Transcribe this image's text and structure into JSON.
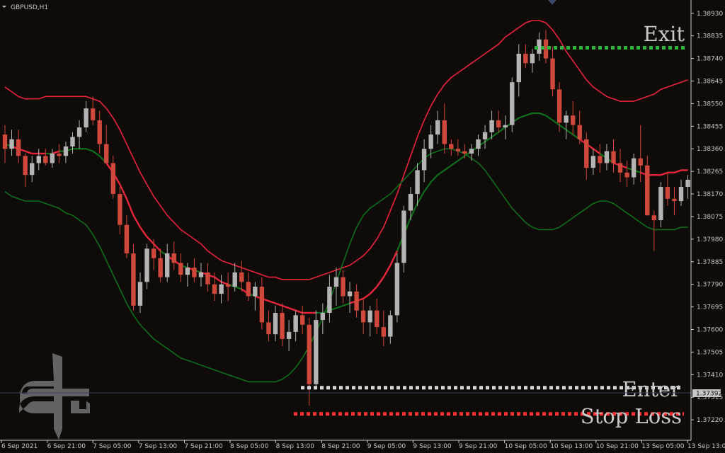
{
  "window": {
    "symbol_title": "GBPUSD,H1"
  },
  "colors": {
    "background": "#0f0b08",
    "axis": "#d0d0d0",
    "bull": "#b4b4b4",
    "bear": "#d0473b",
    "upper_band": "#e8233c",
    "lower_band": "#0f6e1b",
    "exit_line": "#2db33a",
    "enter_line": "#d6d6d6",
    "stop_line": "#ff3030",
    "current_price_line": "#3a4360",
    "current_price_tag": "#c8c8c8"
  },
  "logo": {
    "icon": "ph-brand-logo-icon",
    "color": "#6d6d6d"
  },
  "annotations": {
    "exit": "Exit",
    "enter": "Enter",
    "stop_loss": "Stop Loss"
  },
  "current_price": {
    "label": "1.37392",
    "value": 1.37392
  },
  "chart_data": {
    "type": "candlestick",
    "title": "GBPUSD,H1",
    "ylim": [
      1.3714,
      1.3898
    ],
    "price_ticks": [
      "1.38930",
      "1.38835",
      "1.38740",
      "1.38645",
      "1.38550",
      "1.38455",
      "1.38360",
      "1.38265",
      "1.38170",
      "1.38075",
      "1.37980",
      "1.37885",
      "1.37790",
      "1.37695",
      "1.37600",
      "1.37505",
      "1.37410",
      "1.37315",
      "1.37220"
    ],
    "time_ticks": [
      "6 Sep 2021",
      "6 Sep 21:00",
      "7 Sep 05:00",
      "7 Sep 13:00",
      "7 Sep 21:00",
      "8 Sep 05:00",
      "8 Sep 13:00",
      "8 Sep 21:00",
      "9 Sep 05:00",
      "9 Sep 13:00",
      "9 Sep 21:00",
      "10 Sep 05:00",
      "10 Sep 13:00",
      "10 Sep 21:00",
      "13 Sep 05:00",
      "13 Sep 13:00"
    ],
    "levels": {
      "exit": 1.38785,
      "enter": 1.37355,
      "stop_loss": 1.37245
    },
    "candles": [
      [
        1.3842,
        1.3846,
        1.383,
        1.3836
      ],
      [
        1.3836,
        1.3844,
        1.3833,
        1.384
      ],
      [
        1.384,
        1.3844,
        1.383,
        1.3833
      ],
      [
        1.3833,
        1.3834,
        1.382,
        1.3825
      ],
      [
        1.3825,
        1.3833,
        1.3822,
        1.383
      ],
      [
        1.383,
        1.3836,
        1.3827,
        1.3833
      ],
      [
        1.3833,
        1.3836,
        1.3829,
        1.383
      ],
      [
        1.383,
        1.3836,
        1.3828,
        1.3834
      ],
      [
        1.3834,
        1.3838,
        1.383,
        1.3833
      ],
      [
        1.3833,
        1.3839,
        1.383,
        1.3837
      ],
      [
        1.3837,
        1.3843,
        1.3834,
        1.3841
      ],
      [
        1.3841,
        1.3848,
        1.3836,
        1.3845
      ],
      [
        1.3845,
        1.3856,
        1.3843,
        1.3853
      ],
      [
        1.3853,
        1.3858,
        1.3846,
        1.3848
      ],
      [
        1.3848,
        1.3852,
        1.3834,
        1.3838
      ],
      [
        1.3838,
        1.3846,
        1.383,
        1.383
      ],
      [
        1.383,
        1.3833,
        1.3815,
        1.3817
      ],
      [
        1.3817,
        1.382,
        1.38,
        1.3804
      ],
      [
        1.3804,
        1.3808,
        1.379,
        1.3792
      ],
      [
        1.3792,
        1.3796,
        1.3768,
        1.377
      ],
      [
        1.377,
        1.3784,
        1.3767,
        1.378
      ],
      [
        1.378,
        1.3796,
        1.3777,
        1.3794
      ],
      [
        1.3794,
        1.3798,
        1.3785,
        1.379
      ],
      [
        1.379,
        1.3794,
        1.378,
        1.3782
      ],
      [
        1.3782,
        1.3796,
        1.378,
        1.3792
      ],
      [
        1.3792,
        1.3797,
        1.3785,
        1.3788
      ],
      [
        1.3788,
        1.3792,
        1.378,
        1.3783
      ],
      [
        1.3783,
        1.3788,
        1.3778,
        1.3786
      ],
      [
        1.3786,
        1.379,
        1.378,
        1.3782
      ],
      [
        1.3782,
        1.3788,
        1.3778,
        1.3784
      ],
      [
        1.3784,
        1.3788,
        1.3776,
        1.3779
      ],
      [
        1.3779,
        1.3784,
        1.3772,
        1.3775
      ],
      [
        1.3775,
        1.3783,
        1.3771,
        1.3779
      ],
      [
        1.3779,
        1.3784,
        1.3772,
        1.3778
      ],
      [
        1.3778,
        1.3788,
        1.3776,
        1.3784
      ],
      [
        1.3784,
        1.3789,
        1.3776,
        1.378
      ],
      [
        1.378,
        1.3784,
        1.3772,
        1.3774
      ],
      [
        1.3774,
        1.378,
        1.3768,
        1.3778
      ],
      [
        1.3778,
        1.3782,
        1.376,
        1.3763
      ],
      [
        1.3763,
        1.3768,
        1.3755,
        1.3758
      ],
      [
        1.3758,
        1.377,
        1.3755,
        1.3767
      ],
      [
        1.3767,
        1.3771,
        1.3753,
        1.3756
      ],
      [
        1.3756,
        1.3764,
        1.3751,
        1.3759
      ],
      [
        1.3759,
        1.3768,
        1.3755,
        1.3766
      ],
      [
        1.3766,
        1.377,
        1.3758,
        1.3762
      ],
      [
        1.3762,
        1.3765,
        1.3728,
        1.3737
      ],
      [
        1.3737,
        1.3768,
        1.3735,
        1.3764
      ],
      [
        1.3764,
        1.3771,
        1.3758,
        1.3767
      ],
      [
        1.3767,
        1.3783,
        1.3763,
        1.3778
      ],
      [
        1.3778,
        1.3786,
        1.377,
        1.3782
      ],
      [
        1.3782,
        1.3785,
        1.3771,
        1.3774
      ],
      [
        1.3774,
        1.378,
        1.3767,
        1.3776
      ],
      [
        1.3776,
        1.3779,
        1.3765,
        1.3768
      ],
      [
        1.3768,
        1.3773,
        1.3758,
        1.3763
      ],
      [
        1.3763,
        1.377,
        1.3757,
        1.3768
      ],
      [
        1.3768,
        1.3773,
        1.3758,
        1.3761
      ],
      [
        1.3761,
        1.3768,
        1.3753,
        1.3757
      ],
      [
        1.3757,
        1.3768,
        1.3754,
        1.3766
      ],
      [
        1.3766,
        1.3792,
        1.3763,
        1.3788
      ],
      [
        1.3788,
        1.3812,
        1.3784,
        1.381
      ],
      [
        1.381,
        1.382,
        1.3806,
        1.3817
      ],
      [
        1.3817,
        1.383,
        1.3812,
        1.3827
      ],
      [
        1.3827,
        1.384,
        1.3822,
        1.3836
      ],
      [
        1.3836,
        1.3846,
        1.3832,
        1.3842
      ],
      [
        1.3842,
        1.3852,
        1.3838,
        1.3848
      ],
      [
        1.3848,
        1.3855,
        1.3834,
        1.3838
      ],
      [
        1.3838,
        1.384,
        1.3833,
        1.3836
      ],
      [
        1.3836,
        1.384,
        1.3833,
        1.3835
      ],
      [
        1.3835,
        1.3838,
        1.3832,
        1.3834
      ],
      [
        1.3834,
        1.3838,
        1.3831,
        1.3836
      ],
      [
        1.3836,
        1.3842,
        1.3833,
        1.384
      ],
      [
        1.384,
        1.3846,
        1.3836,
        1.3843
      ],
      [
        1.3843,
        1.3852,
        1.384,
        1.3848
      ],
      [
        1.3848,
        1.3852,
        1.3843,
        1.3845
      ],
      [
        1.3845,
        1.385,
        1.384,
        1.3846
      ],
      [
        1.3846,
        1.3866,
        1.3843,
        1.3864
      ],
      [
        1.3864,
        1.388,
        1.3858,
        1.3876
      ],
      [
        1.3876,
        1.388,
        1.387,
        1.3872
      ],
      [
        1.3872,
        1.3878,
        1.3868,
        1.3876
      ],
      [
        1.3876,
        1.3885,
        1.3873,
        1.3882
      ],
      [
        1.3882,
        1.3886,
        1.3872,
        1.3874
      ],
      [
        1.3874,
        1.3879,
        1.3858,
        1.3861
      ],
      [
        1.3861,
        1.3864,
        1.3843,
        1.3847
      ],
      [
        1.3847,
        1.3852,
        1.384,
        1.385
      ],
      [
        1.385,
        1.3856,
        1.3842,
        1.3846
      ],
      [
        1.3846,
        1.3852,
        1.3838,
        1.384
      ],
      [
        1.384,
        1.3843,
        1.3823,
        1.3828
      ],
      [
        1.3828,
        1.3836,
        1.3825,
        1.3833
      ],
      [
        1.3833,
        1.3838,
        1.3826,
        1.383
      ],
      [
        1.383,
        1.3838,
        1.3827,
        1.3835
      ],
      [
        1.3835,
        1.384,
        1.3826,
        1.383
      ],
      [
        1.383,
        1.3836,
        1.3822,
        1.3826
      ],
      [
        1.3826,
        1.3831,
        1.382,
        1.3824
      ],
      [
        1.3824,
        1.3834,
        1.3821,
        1.3832
      ],
      [
        1.3832,
        1.3846,
        1.3822,
        1.3829
      ],
      [
        1.3829,
        1.3833,
        1.3808,
        1.3808
      ],
      [
        1.3808,
        1.381,
        1.3793,
        1.3806
      ],
      [
        1.3806,
        1.3822,
        1.3803,
        1.382
      ],
      [
        1.382,
        1.3826,
        1.3812,
        1.3815
      ],
      [
        1.3815,
        1.382,
        1.3808,
        1.3814
      ],
      [
        1.3814,
        1.3823,
        1.3812,
        1.382
      ],
      [
        1.382,
        1.3825,
        1.3815,
        1.3823
      ]
    ],
    "indicators": [
      {
        "name": "upper_band",
        "values": [
          1.3862,
          1.386,
          1.3858,
          1.3857,
          1.3857,
          1.3857,
          1.3858,
          1.3858,
          1.3858,
          1.3858,
          1.3858,
          1.3858,
          1.3858,
          1.3857,
          1.3856,
          1.3853,
          1.3849,
          1.3844,
          1.3838,
          1.3832,
          1.3826,
          1.3821,
          1.3816,
          1.3812,
          1.3808,
          1.3805,
          1.3802,
          1.38,
          1.3798,
          1.3796,
          1.3793,
          1.3791,
          1.3789,
          1.3788,
          1.3787,
          1.3786,
          1.3785,
          1.3784,
          1.3783,
          1.3782,
          1.3782,
          1.3781,
          1.3781,
          1.3781,
          1.3781,
          1.3781,
          1.3782,
          1.3783,
          1.3784,
          1.3785,
          1.3786,
          1.3787,
          1.3789,
          1.3791,
          1.3794,
          1.3798,
          1.3803,
          1.381,
          1.3817,
          1.3825,
          1.3833,
          1.3841,
          1.3848,
          1.3854,
          1.3859,
          1.3863,
          1.3866,
          1.3868,
          1.387,
          1.3872,
          1.3874,
          1.3876,
          1.3878,
          1.388,
          1.3883,
          1.3885,
          1.3887,
          1.3889,
          1.389,
          1.389,
          1.3889,
          1.3886,
          1.3882,
          1.3877,
          1.3873,
          1.3869,
          1.3865,
          1.3862,
          1.386,
          1.3858,
          1.3857,
          1.3856,
          1.3856,
          1.3856,
          1.3857,
          1.3858,
          1.3859,
          1.3861,
          1.3862,
          1.3863,
          1.3864,
          1.3865
        ]
      },
      {
        "name": "middle_band",
        "values": [
          1.3838,
          1.3837,
          1.3836,
          1.3835,
          1.3834,
          1.3834,
          1.3834,
          1.3834,
          1.3835,
          1.3835,
          1.3836,
          1.3836,
          1.3836,
          1.3835,
          1.3833,
          1.383,
          1.3826,
          1.3821,
          1.3815,
          1.3808,
          1.3803,
          1.3799,
          1.3796,
          1.3793,
          1.3791,
          1.3789,
          1.3787,
          1.3786,
          1.3785,
          1.3784,
          1.3783,
          1.3782,
          1.378,
          1.3779,
          1.3778,
          1.3777,
          1.3775,
          1.3774,
          1.3773,
          1.3772,
          1.3771,
          1.377,
          1.3769,
          1.3768,
          1.3767,
          1.3767,
          1.3767,
          1.3767,
          1.3768,
          1.3769,
          1.377,
          1.3771,
          1.3772,
          1.3773,
          1.3775,
          1.3778,
          1.3782,
          1.3787,
          1.3793,
          1.38,
          1.3807,
          1.3813,
          1.3818,
          1.3822,
          1.3825,
          1.3827,
          1.3829,
          1.3831,
          1.3833,
          1.3835,
          1.3837,
          1.3839,
          1.3841,
          1.3843,
          1.3845,
          1.3847,
          1.3849,
          1.385,
          1.3851,
          1.3851,
          1.385,
          1.3848,
          1.3846,
          1.3844,
          1.3842,
          1.384,
          1.3838,
          1.3836,
          1.3834,
          1.3832,
          1.383,
          1.3829,
          1.3828,
          1.3827,
          1.3826,
          1.3825,
          1.3825,
          1.3825,
          1.3826,
          1.3826,
          1.3827,
          1.3827
        ]
      },
      {
        "name": "lower_band",
        "values": [
          1.3818,
          1.3816,
          1.3815,
          1.3814,
          1.3814,
          1.3814,
          1.3813,
          1.3812,
          1.3811,
          1.3809,
          1.3808,
          1.3806,
          1.3804,
          1.38,
          1.3795,
          1.3789,
          1.3783,
          1.3777,
          1.3771,
          1.3766,
          1.3762,
          1.3759,
          1.3756,
          1.3754,
          1.3752,
          1.375,
          1.3748,
          1.3747,
          1.3746,
          1.3745,
          1.3744,
          1.3743,
          1.3742,
          1.3741,
          1.374,
          1.3739,
          1.3738,
          1.3738,
          1.3738,
          1.3738,
          1.3738,
          1.3739,
          1.3741,
          1.3744,
          1.3748,
          1.3753,
          1.3759,
          1.3765,
          1.3772,
          1.378,
          1.3788,
          1.3796,
          1.3803,
          1.3808,
          1.3811,
          1.3813,
          1.3815,
          1.3817,
          1.382,
          1.3823,
          1.3826,
          1.3829,
          1.3832,
          1.3834,
          1.3835,
          1.3836,
          1.3836,
          1.3835,
          1.3834,
          1.3832,
          1.383,
          1.3827,
          1.3823,
          1.3819,
          1.3815,
          1.3811,
          1.3808,
          1.3805,
          1.3803,
          1.3802,
          1.3802,
          1.3802,
          1.3803,
          1.3805,
          1.3807,
          1.3809,
          1.3811,
          1.3813,
          1.3814,
          1.3814,
          1.3813,
          1.3811,
          1.3809,
          1.3807,
          1.3805,
          1.3803,
          1.3802,
          1.3802,
          1.3802,
          1.3802,
          1.3803,
          1.3803
        ]
      }
    ]
  }
}
